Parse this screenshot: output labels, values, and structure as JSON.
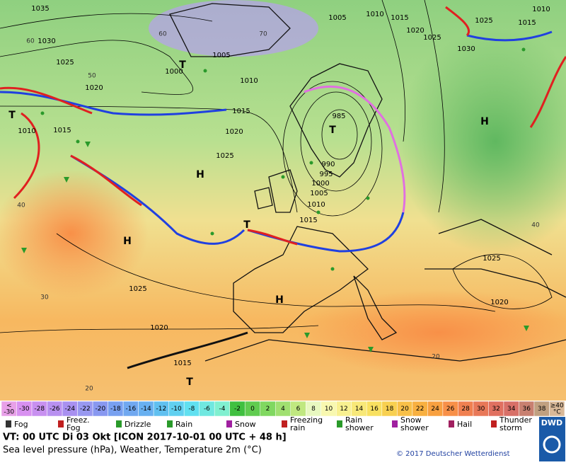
{
  "map": {
    "isobar_labels": [
      "1035",
      "1030",
      "1025",
      "1020",
      "1015",
      "1010",
      "1000",
      "1005",
      "1010",
      "1005",
      "1010",
      "1015",
      "1020",
      "1025",
      "1030",
      "1025",
      "1015",
      "1010",
      "1015",
      "1020",
      "1025",
      "985",
      "990",
      "995",
      "1000",
      "1005",
      "1010",
      "1015",
      "1025",
      "1020",
      "1015",
      "1025",
      "1020"
    ],
    "temperature_labels": [
      "60",
      "50",
      "60",
      "70",
      "40",
      "30",
      "20",
      "20",
      "40"
    ],
    "pressure_centers": [
      "T",
      "T",
      "H",
      "T",
      "H",
      "T",
      "H",
      "H",
      "T"
    ]
  },
  "color_scale": {
    "first": [
      "<",
      "-30"
    ],
    "values": [
      -30,
      -28,
      -26,
      -24,
      -22,
      -20,
      -18,
      -16,
      -14,
      -12,
      -10,
      -8,
      -6,
      -4,
      -2,
      0,
      2,
      4,
      6,
      8,
      10,
      12,
      14,
      16,
      18,
      20,
      22,
      24,
      26,
      28,
      30,
      32,
      34,
      36,
      38
    ],
    "last": [
      "≥40",
      "°C"
    ],
    "colors": [
      "#e8a0e8",
      "#d890f0",
      "#c890f0",
      "#b890f0",
      "#a890f0",
      "#9898f0",
      "#8898f0",
      "#78a0f0",
      "#70a8f0",
      "#68b0f0",
      "#60c0f0",
      "#60d0f0",
      "#60e0f0",
      "#70e8e0",
      "#80f0d0",
      "#40c040",
      "#60cc50",
      "#80d860",
      "#a0e070",
      "#c0e880",
      "#e8f8c0",
      "#f8f8b0",
      "#f8f090",
      "#f8e878",
      "#f8e060",
      "#f8d050",
      "#f8c048",
      "#f8b040",
      "#f8a040",
      "#f89048",
      "#f08050",
      "#e87858",
      "#e07060",
      "#d87068",
      "#c88070",
      "#c0a080",
      "#d8b898"
    ]
  },
  "legend": [
    [
      "Fog"
    ],
    [
      "Freez.",
      "Fog"
    ],
    [
      "Drizzle"
    ],
    [
      "Rain"
    ],
    [
      "Snow"
    ],
    [
      "Freezing",
      "rain"
    ],
    [
      "Rain",
      "shower"
    ],
    [
      "Snow",
      "shower"
    ],
    [
      "Hail"
    ],
    [
      "Thunder",
      "storm"
    ]
  ],
  "footer": {
    "valid_time": "VT: 00 UTC Di  03 Okt [ICON 2017-10-01  00 UTC + 48 h]",
    "description": "Sea level pressure (hPa), Weather, Temperature 2m (°C)",
    "copyright": "© 2017 Deutscher Wetterdienst",
    "logo": "DWD"
  }
}
